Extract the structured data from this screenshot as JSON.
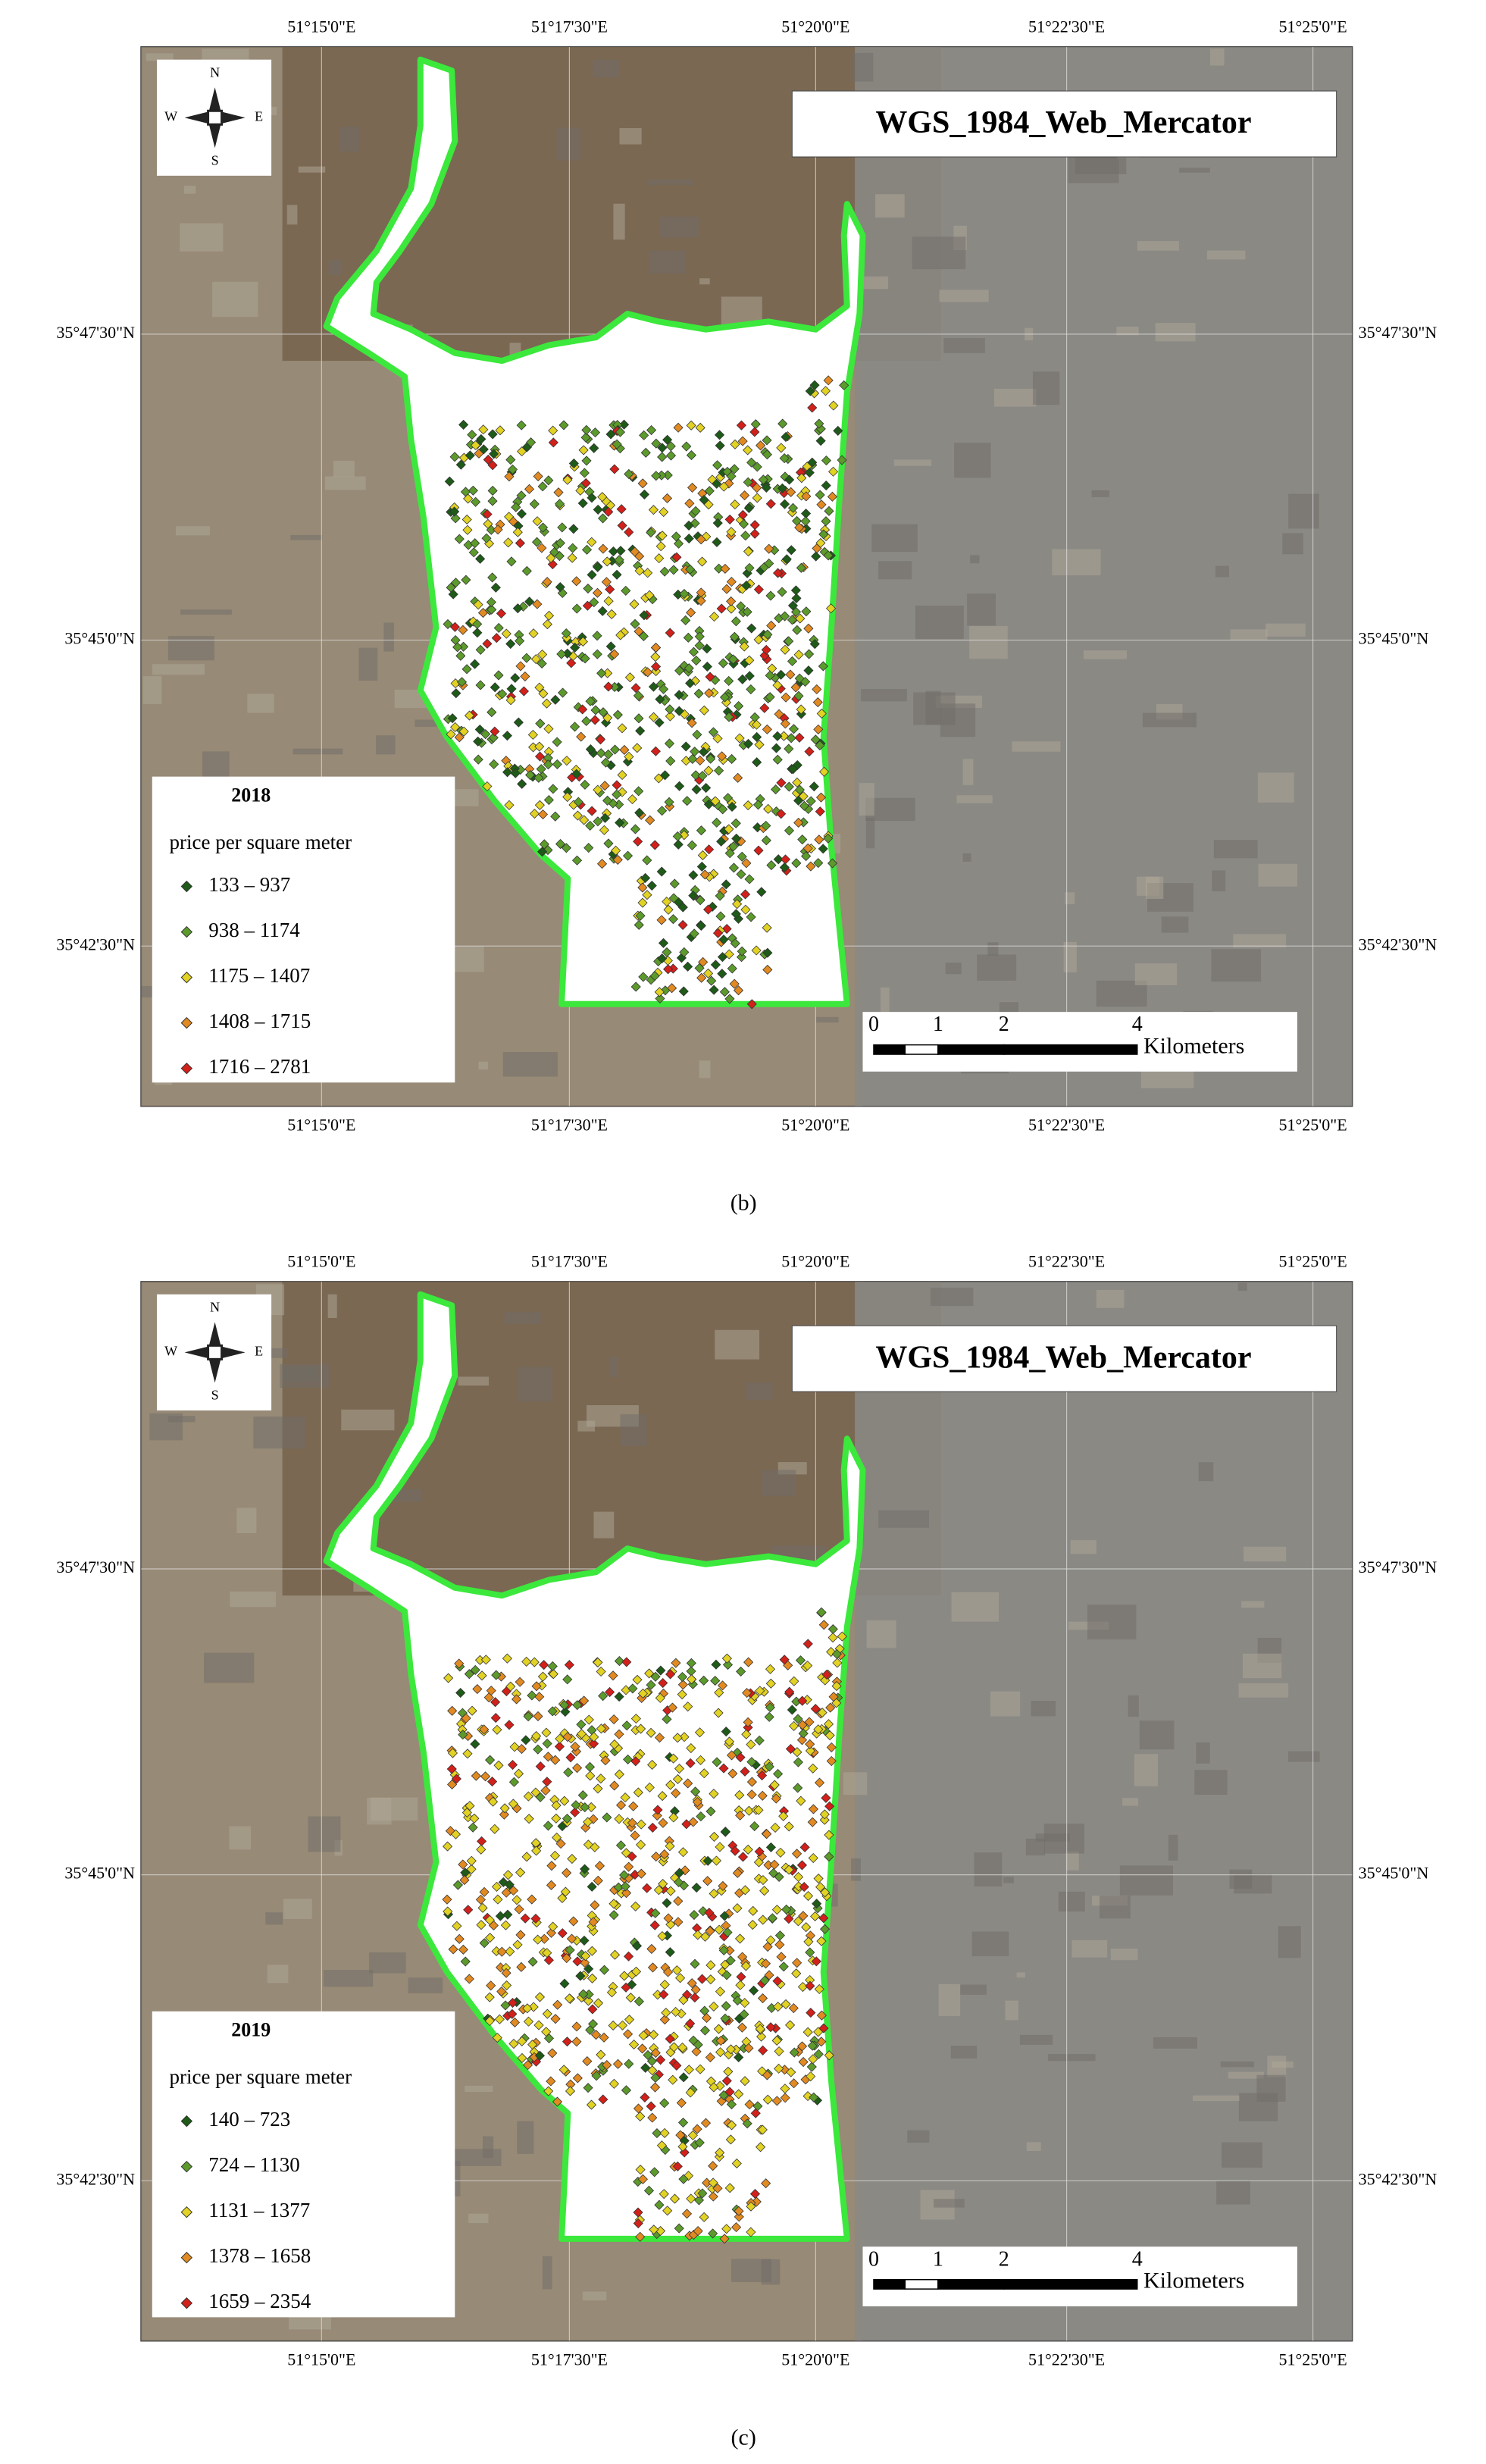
{
  "x_tick_labels": [
    "51°15'0\"E",
    "51°17'30\"E",
    "51°20'0\"E",
    "51°22'30\"E",
    "51°25'0\"E"
  ],
  "y_tick_labels": [
    "35°47'30\"N",
    "35°45'0\"N",
    "35°42'30\"N"
  ],
  "projection": "WGS_1984_Web_Mercator",
  "compass": [
    "N",
    "S",
    "E",
    "W"
  ],
  "scale_bar": {
    "labels": [
      "0",
      "1",
      "2",
      "4"
    ],
    "unit": "Kilometers"
  },
  "legend_title": "price per square meter",
  "panels": [
    {
      "caption": "(b)",
      "year": "2018",
      "classes": [
        {
          "label": "133 – 937",
          "color": "#1e5a18"
        },
        {
          "label": "938 – 1174",
          "color": "#5c9a2c"
        },
        {
          "label": "1175 – 1407",
          "color": "#e2d224"
        },
        {
          "label": "1408 – 1715",
          "color": "#e28a22"
        },
        {
          "label": "1716 – 2781",
          "color": "#d2201a"
        }
      ]
    },
    {
      "caption": "(c)",
      "year": "2019",
      "classes": [
        {
          "label": "140 – 723",
          "color": "#1e5a18"
        },
        {
          "label": "724 – 1130",
          "color": "#5c9a2c"
        },
        {
          "label": "1131 – 1377",
          "color": "#e2d224"
        },
        {
          "label": "1378 – 1658",
          "color": "#e28a22"
        },
        {
          "label": "1659 – 2354",
          "color": "#d2201a"
        }
      ]
    }
  ]
}
